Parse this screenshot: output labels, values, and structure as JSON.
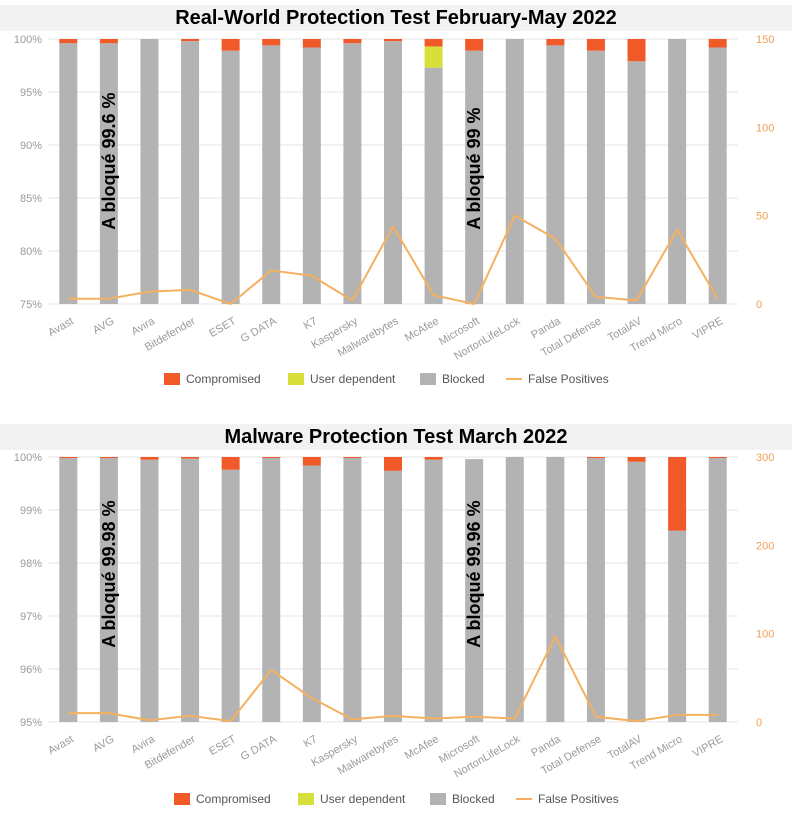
{
  "colors": {
    "compromised": "#f05a28",
    "user_dependent": "#d7e03a",
    "blocked": "#b3b3b3",
    "false_positives": "#f5b060",
    "grid": "#e5e5e5"
  },
  "legend": {
    "compromised": "Compromised",
    "user_dependent": "User dependent",
    "blocked": "Blocked",
    "false_positives": "False Positives"
  },
  "chart_data": [
    {
      "type": "bar",
      "stacked": true,
      "title": "Real-World Protection Test February-May 2022",
      "categories": [
        "Avast",
        "AVG",
        "Avira",
        "Bitdefender",
        "ESET",
        "G DATA",
        "K7",
        "Kaspersky",
        "Malwarebytes",
        "McAfee",
        "Microsoft",
        "NortonLifeLock",
        "Panda",
        "Total Defense",
        "TotalAV",
        "Trend Micro",
        "VIPRE"
      ],
      "ylim": [
        75,
        100
      ],
      "yticks": [
        "75%",
        "80%",
        "85%",
        "90%",
        "95%",
        "100%"
      ],
      "y2lim": [
        0,
        150
      ],
      "y2ticks": [
        "0",
        "50",
        "100",
        "150"
      ],
      "series": [
        {
          "name": "Blocked",
          "values": [
            99.6,
            99.6,
            100,
            99.8,
            98.9,
            99.4,
            99.2,
            99.6,
            99.8,
            97.3,
            98.9,
            100,
            99.4,
            98.9,
            97.9,
            100,
            99.2
          ]
        },
        {
          "name": "User dependent",
          "values": [
            0,
            0,
            0,
            0,
            0,
            0,
            0,
            0,
            0,
            2.0,
            0,
            0,
            0,
            0,
            0,
            0,
            0
          ]
        },
        {
          "name": "Compromised",
          "values": [
            0.4,
            0.4,
            0,
            0.2,
            1.1,
            0.6,
            0.8,
            0.4,
            0.2,
            0.7,
            1.1,
            0,
            0.6,
            1.1,
            2.1,
            0,
            0.8
          ]
        },
        {
          "name": "False Positives",
          "axis": "right",
          "values": [
            3,
            3,
            7,
            8,
            0,
            19,
            16,
            2,
            44,
            5,
            0,
            50,
            37,
            4,
            2,
            42,
            3
          ]
        }
      ],
      "annotations": [
        {
          "text": "A bloqué 99.6 %",
          "category": "AVG"
        },
        {
          "text": "A bloqué 99 %",
          "category": "Microsoft"
        }
      ]
    },
    {
      "type": "bar",
      "stacked": true,
      "title": "Malware Protection Test March 2022",
      "categories": [
        "Avast",
        "AVG",
        "Avira",
        "Bitdefender",
        "ESET",
        "G DATA",
        "K7",
        "Kaspersky",
        "Malwarebytes",
        "McAfee",
        "Microsoft",
        "NortonLifeLock",
        "Panda",
        "Total Defense",
        "TotalAV",
        "Trend Micro",
        "VIPRE"
      ],
      "ylim": [
        95,
        100
      ],
      "yticks": [
        "95%",
        "96%",
        "97%",
        "98%",
        "99%",
        "100%"
      ],
      "y2lim": [
        0,
        300
      ],
      "y2ticks": [
        "0",
        "100",
        "200",
        "300"
      ],
      "series": [
        {
          "name": "Blocked",
          "values": [
            99.98,
            99.98,
            99.95,
            99.97,
            99.76,
            99.98,
            99.84,
            99.98,
            99.74,
            99.95,
            99.96,
            100,
            100,
            99.98,
            99.91,
            98.61,
            99.98
          ]
        },
        {
          "name": "User dependent",
          "values": [
            0,
            0,
            0,
            0,
            0,
            0,
            0,
            0,
            0,
            0,
            0,
            0,
            0,
            0,
            0,
            0,
            0
          ]
        },
        {
          "name": "Compromised",
          "values": [
            0.02,
            0.02,
            0.05,
            0.03,
            0.24,
            0.02,
            0.16,
            0.02,
            0.26,
            0.05,
            0,
            0,
            0,
            0.02,
            0.09,
            1.39,
            0.02
          ]
        },
        {
          "name": "False Positives",
          "axis": "right",
          "values": [
            10,
            10,
            2,
            7,
            1,
            59,
            27,
            3,
            7,
            4,
            6,
            4,
            97,
            6,
            1,
            8,
            8
          ]
        }
      ],
      "annotations": [
        {
          "text": "A bloqué 99.98 %",
          "category": "AVG"
        },
        {
          "text": "A bloqué 99.96 %",
          "category": "Microsoft"
        }
      ]
    }
  ]
}
